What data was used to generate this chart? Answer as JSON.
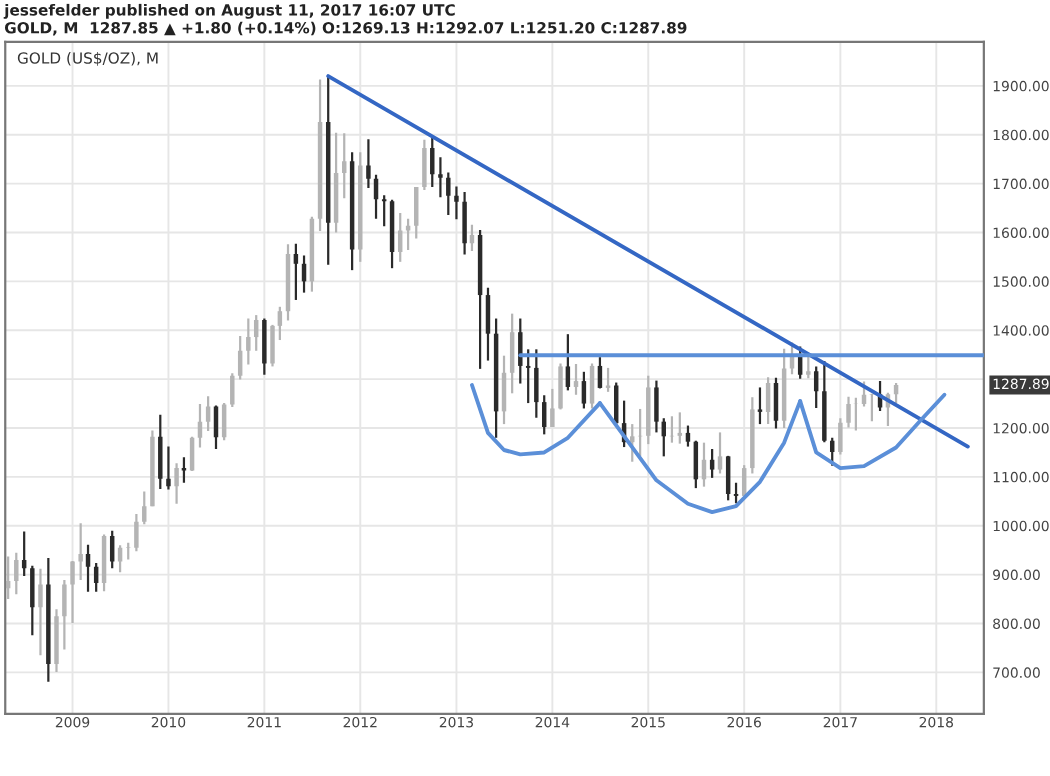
{
  "chart_data": {
    "type": "candlestick",
    "title": "GOLD (US$/OZ), M",
    "annotations": [
      "jessefelder published on August 11, 2017 16:07 UTC",
      "GOLD, M  1287.85 ▲ +1.80 (+0.14%) O:1269.13 H:1292.07 L:1251.20 C:1287.89",
      {
        "text": "1287.89",
        "y": 1287.89
      }
    ],
    "x": [
      "2008-05",
      "2008-06",
      "2008-07",
      "2008-08",
      "2008-09",
      "2008-10",
      "2008-11",
      "2008-12",
      "2009-01",
      "2009-02",
      "2009-03",
      "2009-04",
      "2009-05",
      "2009-06",
      "2009-07",
      "2009-08",
      "2009-09",
      "2009-10",
      "2009-11",
      "2009-12",
      "2010-01",
      "2010-02",
      "2010-03",
      "2010-04",
      "2010-05",
      "2010-06",
      "2010-07",
      "2010-08",
      "2010-09",
      "2010-10",
      "2010-11",
      "2010-12",
      "2011-01",
      "2011-02",
      "2011-03",
      "2011-04",
      "2011-05",
      "2011-06",
      "2011-07",
      "2011-08",
      "2011-09",
      "2011-10",
      "2011-11",
      "2011-12",
      "2012-01",
      "2012-02",
      "2012-03",
      "2012-04",
      "2012-05",
      "2012-06",
      "2012-07",
      "2012-08",
      "2012-09",
      "2012-10",
      "2012-11",
      "2012-12",
      "2013-01",
      "2013-02",
      "2013-03",
      "2013-04",
      "2013-05",
      "2013-06",
      "2013-07",
      "2013-08",
      "2013-09",
      "2013-10",
      "2013-11",
      "2013-12",
      "2014-01",
      "2014-02",
      "2014-03",
      "2014-04",
      "2014-05",
      "2014-06",
      "2014-07",
      "2014-08",
      "2014-09",
      "2014-10",
      "2014-11",
      "2014-12",
      "2015-01",
      "2015-02",
      "2015-03",
      "2015-04",
      "2015-05",
      "2015-06",
      "2015-07",
      "2015-08",
      "2015-09",
      "2015-10",
      "2015-11",
      "2015-12",
      "2016-01",
      "2016-02",
      "2016-03",
      "2016-04",
      "2016-05",
      "2016-06",
      "2016-07",
      "2016-08",
      "2016-09",
      "2016-10",
      "2016-11",
      "2016-12",
      "2017-01",
      "2017-02",
      "2017-03",
      "2017-04",
      "2017-05",
      "2017-06",
      "2017-07",
      "2017-08"
    ],
    "ohlc": [
      [
        872,
        937,
        850,
        887
      ],
      [
        887,
        945,
        860,
        930
      ],
      [
        930,
        988,
        897,
        913
      ],
      [
        913,
        918,
        776,
        833
      ],
      [
        833,
        912,
        735,
        880
      ],
      [
        880,
        934,
        681,
        717
      ],
      [
        717,
        829,
        701,
        815
      ],
      [
        815,
        889,
        747,
        880
      ],
      [
        880,
        928,
        801,
        927
      ],
      [
        927,
        1005,
        889,
        942
      ],
      [
        942,
        961,
        865,
        916
      ],
      [
        916,
        924,
        865,
        883
      ],
      [
        883,
        982,
        866,
        979
      ],
      [
        979,
        990,
        913,
        927
      ],
      [
        927,
        960,
        905,
        955
      ],
      [
        955,
        965,
        931,
        955
      ],
      [
        955,
        1024,
        948,
        1008
      ],
      [
        1008,
        1070,
        1003,
        1040
      ],
      [
        1040,
        1195,
        1040,
        1182
      ],
      [
        1182,
        1227,
        1075,
        1096
      ],
      [
        1096,
        1162,
        1074,
        1081
      ],
      [
        1081,
        1128,
        1045,
        1118
      ],
      [
        1118,
        1140,
        1088,
        1113
      ],
      [
        1113,
        1182,
        1112,
        1180
      ],
      [
        1180,
        1249,
        1160,
        1213
      ],
      [
        1213,
        1265,
        1194,
        1244
      ],
      [
        1244,
        1246,
        1157,
        1181
      ],
      [
        1181,
        1251,
        1175,
        1248
      ],
      [
        1248,
        1312,
        1243,
        1307
      ],
      [
        1307,
        1388,
        1299,
        1358
      ],
      [
        1358,
        1424,
        1330,
        1386
      ],
      [
        1386,
        1431,
        1358,
        1421
      ],
      [
        1421,
        1424,
        1309,
        1332
      ],
      [
        1332,
        1411,
        1326,
        1409
      ],
      [
        1409,
        1448,
        1380,
        1439
      ],
      [
        1439,
        1576,
        1420,
        1556
      ],
      [
        1556,
        1577,
        1462,
        1536
      ],
      [
        1536,
        1553,
        1477,
        1500
      ],
      [
        1500,
        1632,
        1479,
        1628
      ],
      [
        1628,
        1913,
        1603,
        1826
      ],
      [
        1826,
        1921,
        1534,
        1620
      ],
      [
        1620,
        1804,
        1600,
        1722
      ],
      [
        1722,
        1803,
        1670,
        1746
      ],
      [
        1746,
        1764,
        1523,
        1565
      ],
      [
        1565,
        1764,
        1540,
        1737
      ],
      [
        1737,
        1791,
        1691,
        1710
      ],
      [
        1710,
        1718,
        1628,
        1668
      ],
      [
        1668,
        1676,
        1613,
        1664
      ],
      [
        1664,
        1667,
        1527,
        1560
      ],
      [
        1560,
        1640,
        1540,
        1604
      ],
      [
        1604,
        1628,
        1564,
        1614
      ],
      [
        1614,
        1693,
        1588,
        1693
      ],
      [
        1693,
        1790,
        1687,
        1773
      ],
      [
        1773,
        1796,
        1693,
        1719
      ],
      [
        1719,
        1754,
        1672,
        1712
      ],
      [
        1712,
        1723,
        1636,
        1675
      ],
      [
        1675,
        1694,
        1627,
        1663
      ],
      [
        1663,
        1683,
        1555,
        1578
      ],
      [
        1578,
        1616,
        1562,
        1595
      ],
      [
        1595,
        1605,
        1321,
        1472
      ],
      [
        1472,
        1487,
        1338,
        1393
      ],
      [
        1393,
        1424,
        1180,
        1234
      ],
      [
        1234,
        1348,
        1208,
        1313
      ],
      [
        1313,
        1434,
        1271,
        1396
      ],
      [
        1396,
        1424,
        1291,
        1327
      ],
      [
        1327,
        1361,
        1251,
        1323
      ],
      [
        1323,
        1361,
        1221,
        1253
      ],
      [
        1253,
        1267,
        1187,
        1202
      ],
      [
        1202,
        1280,
        1202,
        1240
      ],
      [
        1240,
        1332,
        1238,
        1326
      ],
      [
        1326,
        1392,
        1277,
        1284
      ],
      [
        1284,
        1331,
        1268,
        1296
      ],
      [
        1296,
        1315,
        1240,
        1250
      ],
      [
        1250,
        1332,
        1240,
        1327
      ],
      [
        1327,
        1345,
        1281,
        1282
      ],
      [
        1282,
        1323,
        1274,
        1287
      ],
      [
        1287,
        1293,
        1205,
        1210
      ],
      [
        1210,
        1256,
        1161,
        1171
      ],
      [
        1171,
        1208,
        1131,
        1183
      ],
      [
        1183,
        1239,
        1142,
        1184
      ],
      [
        1184,
        1307,
        1167,
        1283
      ],
      [
        1283,
        1297,
        1191,
        1213
      ],
      [
        1213,
        1220,
        1142,
        1183
      ],
      [
        1183,
        1224,
        1170,
        1184
      ],
      [
        1184,
        1232,
        1168,
        1190
      ],
      [
        1190,
        1205,
        1162,
        1172
      ],
      [
        1172,
        1174,
        1077,
        1095
      ],
      [
        1095,
        1170,
        1080,
        1135
      ],
      [
        1135,
        1157,
        1098,
        1115
      ],
      [
        1115,
        1191,
        1107,
        1142
      ],
      [
        1142,
        1143,
        1052,
        1065
      ],
      [
        1065,
        1088,
        1046,
        1061
      ],
      [
        1061,
        1124,
        1061,
        1118
      ],
      [
        1118,
        1263,
        1107,
        1238
      ],
      [
        1238,
        1283,
        1208,
        1233
      ],
      [
        1233,
        1304,
        1208,
        1292
      ],
      [
        1292,
        1303,
        1199,
        1215
      ],
      [
        1215,
        1362,
        1200,
        1322
      ],
      [
        1322,
        1375,
        1310,
        1351
      ],
      [
        1351,
        1367,
        1301,
        1309
      ],
      [
        1309,
        1352,
        1302,
        1316
      ],
      [
        1316,
        1326,
        1241,
        1275
      ],
      [
        1275,
        1337,
        1171,
        1174
      ],
      [
        1174,
        1180,
        1123,
        1151
      ],
      [
        1151,
        1220,
        1146,
        1211
      ],
      [
        1211,
        1264,
        1201,
        1249
      ],
      [
        1249,
        1262,
        1195,
        1249
      ],
      [
        1249,
        1295,
        1244,
        1268
      ],
      [
        1268,
        1270,
        1214,
        1269
      ],
      [
        1269,
        1296,
        1235,
        1242
      ],
      [
        1242,
        1272,
        1204,
        1269
      ],
      [
        1269,
        1292,
        1251,
        1288
      ]
    ],
    "series": [
      {
        "type": "line",
        "color": "#3467c4",
        "x": [
          "2011-09",
          "2018-05"
        ],
        "values": [
          1920,
          1162
        ]
      },
      {
        "type": "line",
        "color": "#5b8fd8",
        "x": [
          "2013-09",
          "2018-07"
        ],
        "values": [
          1349,
          1349
        ]
      },
      {
        "type": "line",
        "color": "#5b8fd8",
        "x": [
          "2013-03",
          "2013-05",
          "2013-07",
          "2013-09",
          "2013-12",
          "2014-03",
          "2014-07"
        ],
        "values": [
          1288,
          1190,
          1155,
          1146,
          1150,
          1180,
          1251
        ]
      },
      {
        "type": "line",
        "color": "#5b8fd8",
        "x": [
          "2014-07",
          "2015-02",
          "2015-06",
          "2015-09",
          "2015-12",
          "2016-03",
          "2016-06",
          "2016-08"
        ],
        "values": [
          1251,
          1093,
          1045,
          1028,
          1040,
          1090,
          1170,
          1255
        ]
      },
      {
        "type": "line",
        "color": "#5b8fd8",
        "x": [
          "2016-08",
          "2016-10",
          "2017-01",
          "2017-04",
          "2017-08",
          "2017-11",
          "2018-02"
        ],
        "values": [
          1255,
          1150,
          1118,
          1122,
          1160,
          1215,
          1268
        ]
      }
    ],
    "xlim": [
      "2008-04-20",
      "2018-07"
    ],
    "ylim": [
      615,
      1990
    ],
    "xticks": [
      {
        "value": "2009",
        "label": "2009"
      },
      {
        "value": "2010",
        "label": "2010"
      },
      {
        "value": "2011",
        "label": "2011"
      },
      {
        "value": "2012",
        "label": "2012"
      },
      {
        "value": "2013",
        "label": "2013"
      },
      {
        "value": "2014",
        "label": "2014"
      },
      {
        "value": "2015",
        "label": "2015"
      },
      {
        "value": "2016",
        "label": "2016"
      },
      {
        "value": "2017",
        "label": "2017"
      },
      {
        "value": "2018",
        "label": "2018"
      }
    ],
    "yticks": [
      {
        "value": 700,
        "label": "700.00"
      },
      {
        "value": 800,
        "label": "800.00"
      },
      {
        "value": 900,
        "label": "900.00"
      },
      {
        "value": 1000,
        "label": "1000.00"
      },
      {
        "value": 1100,
        "label": "1100.00"
      },
      {
        "value": 1200,
        "label": "1200.00"
      },
      {
        "value": 1300,
        "label": null
      },
      {
        "value": 1400,
        "label": "1400.00"
      },
      {
        "value": 1500,
        "label": "1500.00"
      },
      {
        "value": 1600,
        "label": "1600.00"
      },
      {
        "value": 1700,
        "label": "1700.00"
      },
      {
        "value": 1800,
        "label": "1800.00"
      },
      {
        "value": 1900,
        "label": "1900.00"
      }
    ],
    "grid": true,
    "legend": false
  }
}
